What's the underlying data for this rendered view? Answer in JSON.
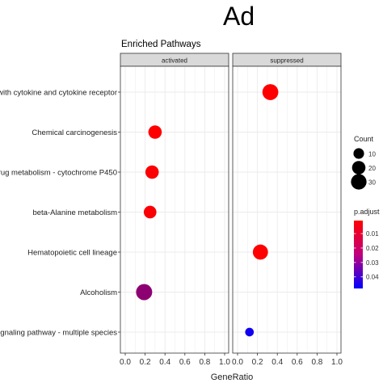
{
  "figure": {
    "panel_letter": "Ad"
  },
  "chart_data": {
    "type": "scatter",
    "title": "Enriched Pathways",
    "xlabel": "GeneRatio",
    "ylabel": "",
    "xlim": [
      0,
      1
    ],
    "xticks": [
      "0.0",
      "0.2",
      "0.4",
      "0.6",
      "0.8",
      "1.0"
    ],
    "categories": [
      "with cytokine and cytokine receptor",
      "Chemical carcinogenesis",
      "rug metabolism - cytochrome P450",
      "beta-Alanine metabolism",
      "Hematopoietic cell lineage",
      "Alcoholism",
      "ignaling pathway - multiple species"
    ],
    "facets": [
      "activated",
      "suppressed"
    ],
    "series": [
      {
        "name": "activated",
        "points": [
          {
            "category": "Chemical carcinogenesis",
            "x": 0.3,
            "count": 20,
            "p_adjust": 0.001
          },
          {
            "category": "rug metabolism - cytochrome P450",
            "x": 0.27,
            "count": 20,
            "p_adjust": 0.002
          },
          {
            "category": "beta-Alanine metabolism",
            "x": 0.25,
            "count": 17,
            "p_adjust": 0.002
          },
          {
            "category": "Alcoholism",
            "x": 0.19,
            "count": 33,
            "p_adjust": 0.022
          }
        ]
      },
      {
        "name": "suppressed",
        "points": [
          {
            "category": "with cytokine and cytokine receptor",
            "x": 0.33,
            "count": 32,
            "p_adjust": 0.001
          },
          {
            "category": "Hematopoietic cell lineage",
            "x": 0.23,
            "count": 28,
            "p_adjust": 0.001
          },
          {
            "category": "ignaling pathway - multiple species",
            "x": 0.12,
            "count": 5,
            "p_adjust": 0.045
          }
        ]
      }
    ],
    "legend": {
      "size": {
        "title": "Count",
        "values": [
          10,
          20,
          30
        ]
      },
      "color": {
        "title": "p.adjust",
        "ticks": [
          "0.01",
          "0.02",
          "0.03",
          "0.04"
        ],
        "ramp_values": [
          0.01,
          0.02,
          0.03,
          0.04
        ],
        "min": 0.001,
        "max": 0.048,
        "low_color": "#ff0000",
        "high_color": "#0000ff"
      }
    },
    "grid": true,
    "legend_position": "right",
    "colors": {
      "panel_bg": "#ffffff",
      "strip_bg": "#d9d9d9",
      "grid": "#ebebeb",
      "frame": "#333333"
    }
  }
}
